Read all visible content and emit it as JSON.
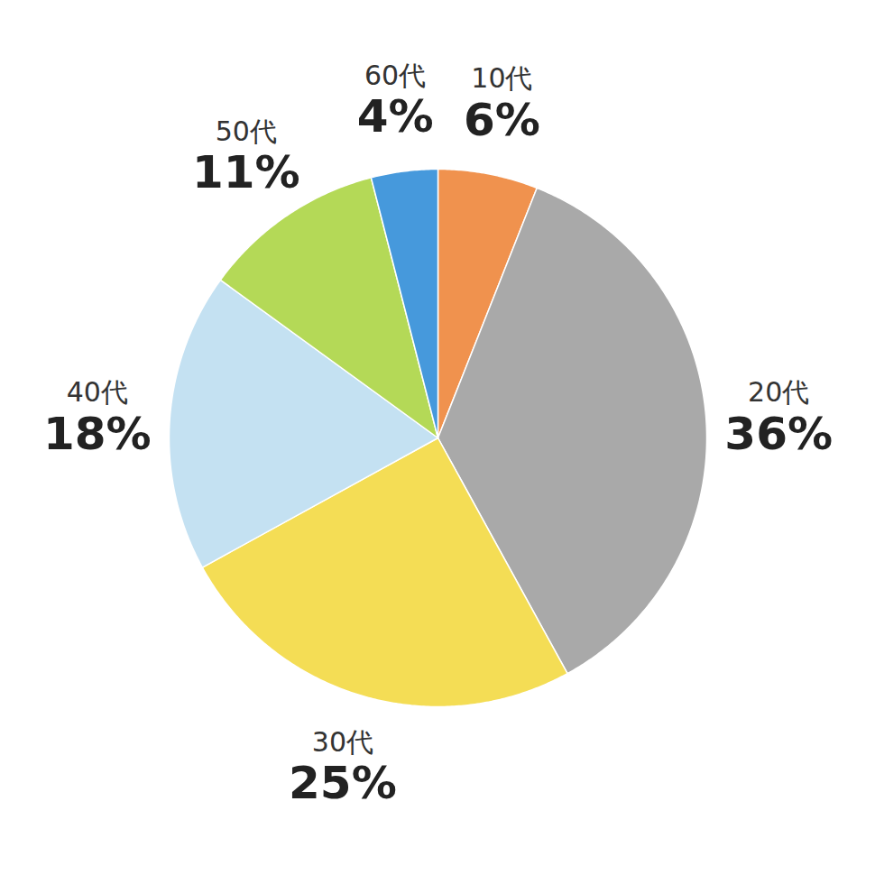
{
  "chart_data": {
    "type": "pie",
    "categories": [
      "10代",
      "20代",
      "30代",
      "40代",
      "50代",
      "60代"
    ],
    "values": [
      6,
      36,
      25,
      18,
      11,
      4
    ],
    "value_labels": [
      "6%",
      "36%",
      "25%",
      "18%",
      "11%",
      "4%"
    ],
    "colors": [
      "#f0924e",
      "#a9a9a9",
      "#f4dd55",
      "#c4e1f2",
      "#b4d957",
      "#4699dc"
    ],
    "data_labels": true
  }
}
